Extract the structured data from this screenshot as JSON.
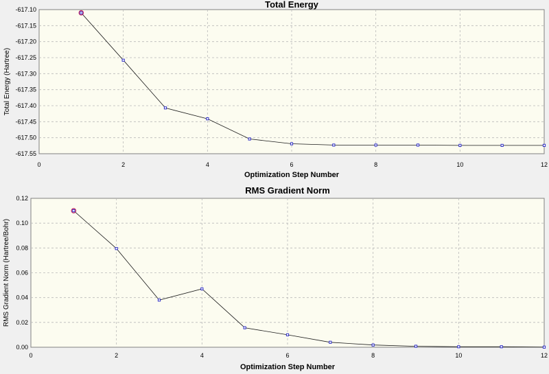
{
  "chart_data": [
    {
      "type": "line",
      "title": "Total Energy",
      "xlabel": "Optimization Step Number",
      "ylabel": "Total Energy (Hartree)",
      "xlim": [
        0,
        12
      ],
      "ylim": [
        -617.55,
        -617.1
      ],
      "x_ticks": [
        0,
        2,
        4,
        6,
        8,
        10,
        12
      ],
      "y_ticks": [
        "-617.10",
        "-617.15",
        "-617.20",
        "-617.25",
        "-617.30",
        "-617.35",
        "-617.40",
        "-617.45",
        "-617.50",
        "-617.55"
      ],
      "grid": true,
      "x": [
        1,
        2,
        3,
        4,
        5,
        6,
        7,
        8,
        9,
        10,
        11,
        12
      ],
      "values": [
        -617.11,
        -617.258,
        -617.407,
        -617.441,
        -617.504,
        -617.519,
        -617.523,
        -617.523,
        -617.523,
        -617.524,
        -617.524,
        -617.524
      ]
    },
    {
      "type": "line",
      "title": "RMS Gradient Norm",
      "xlabel": "Optimization Step Number",
      "ylabel": "RMS Gradient Norm (Hartree/Bohr)",
      "xlim": [
        0,
        12
      ],
      "ylim": [
        0,
        0.12
      ],
      "x_ticks": [
        0,
        2,
        4,
        6,
        8,
        10,
        12
      ],
      "y_ticks": [
        "0.12",
        "0.10",
        "0.08",
        "0.06",
        "0.04",
        "0.02",
        "0.00"
      ],
      "grid": true,
      "x": [
        1,
        2,
        3,
        4,
        5,
        6,
        7,
        8,
        9,
        10,
        11,
        12
      ],
      "values": [
        0.11,
        0.0795,
        0.038,
        0.047,
        0.0157,
        0.01,
        0.004,
        0.0018,
        0.0008,
        0.0004,
        0.0004,
        0.0001
      ]
    }
  ]
}
